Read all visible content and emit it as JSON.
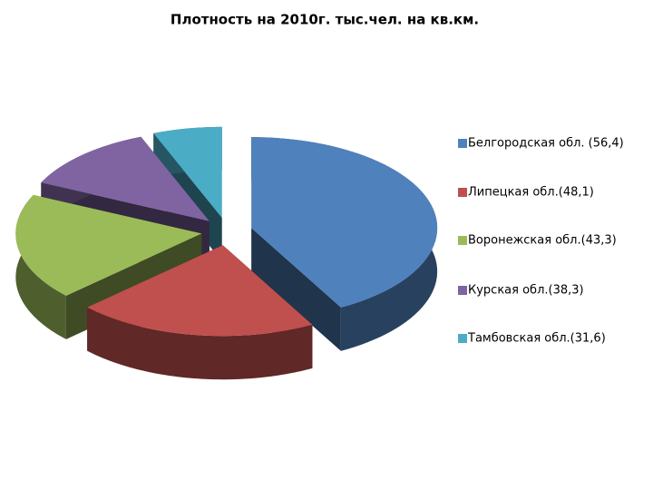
{
  "chart_data": {
    "type": "pie",
    "title": "Плотность на 2010г. тыс.чел. на кв.км.",
    "categories": [
      "Белгородская обл. (56,4)",
      "Липецкая обл.(48,1)",
      "Воронежская обл.(43,3)",
      "Курская обл.(38,3)",
      "Тамбовская обл.(31,6)"
    ],
    "values": [
      42,
      21,
      19,
      12,
      6
    ],
    "colors": [
      "#4f81bd",
      "#c0504d",
      "#9bbb59",
      "#8064a2",
      "#4bacc6"
    ],
    "legend": "right"
  }
}
